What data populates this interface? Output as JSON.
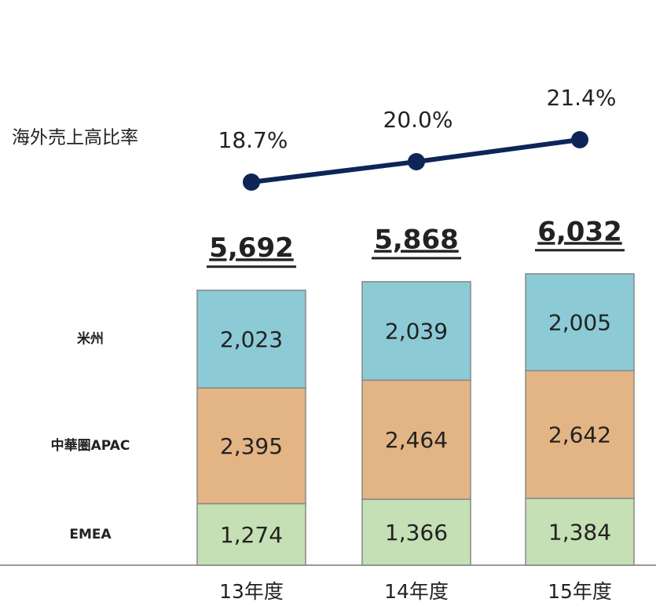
{
  "chart_data": [
    {
      "type": "stacked-bar",
      "categories": [
        "13年度",
        "14年度",
        "15年度"
      ],
      "series": [
        {
          "name": "EMEA",
          "color": "#c5e0b4",
          "values": [
            1274,
            1366,
            1384
          ],
          "value_labels": [
            "1,274",
            "1,366",
            "1,384"
          ]
        },
        {
          "name": "中華圏APAC",
          "color": "#e3b584",
          "values": [
            2395,
            2464,
            2642
          ],
          "value_labels": [
            "2,395",
            "2,464",
            "2,642"
          ]
        },
        {
          "name": "米州",
          "color": "#8ccad6",
          "values": [
            2023,
            2039,
            2005
          ],
          "value_labels": [
            "2,023",
            "2,039",
            "2,005"
          ]
        }
      ],
      "totals": [
        5692,
        5868,
        6032
      ],
      "total_labels": [
        "5,692",
        "5,868",
        "6,032"
      ],
      "ylim": [
        0,
        6500
      ]
    },
    {
      "type": "line",
      "categories": [
        "13年度",
        "14年度",
        "15年度"
      ],
      "series": [
        {
          "name": "海外売上高比率",
          "color": "#0d2557",
          "values": [
            18.7,
            20.0,
            21.4
          ],
          "value_labels": [
            "18.7%",
            "20.0%",
            "21.4%"
          ]
        }
      ],
      "ylim": [
        15,
        25
      ]
    }
  ]
}
